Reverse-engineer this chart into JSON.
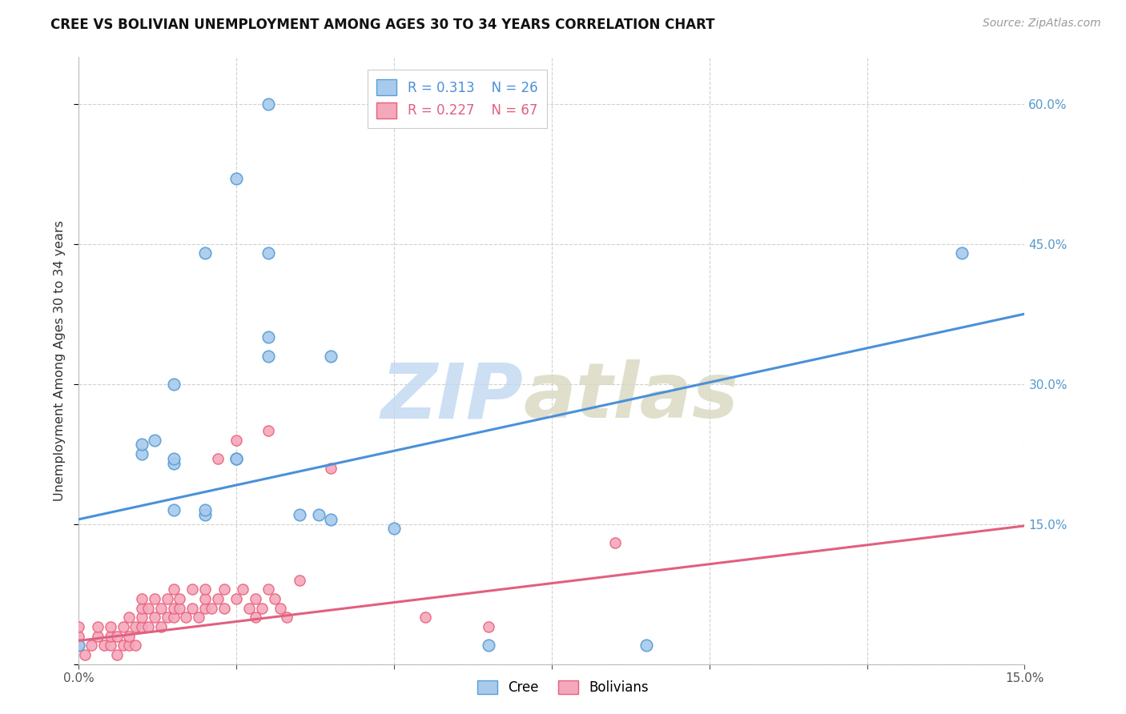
{
  "title": "CREE VS BOLIVIAN UNEMPLOYMENT AMONG AGES 30 TO 34 YEARS CORRELATION CHART",
  "source": "Source: ZipAtlas.com",
  "ylabel": "Unemployment Among Ages 30 to 34 years",
  "xlim": [
    0.0,
    0.15
  ],
  "ylim": [
    0.0,
    0.65
  ],
  "xticks": [
    0.0,
    0.025,
    0.05,
    0.075,
    0.1,
    0.125,
    0.15
  ],
  "yticks": [
    0.0,
    0.15,
    0.3,
    0.45,
    0.6
  ],
  "cree_color": "#A8CAED",
  "bolivian_color": "#F4A8BC",
  "cree_edge_color": "#5A9FD4",
  "bolivian_edge_color": "#E8607A",
  "cree_line_color": "#4A90D9",
  "bolivian_line_color": "#E06080",
  "R_cree": 0.313,
  "N_cree": 26,
  "R_bolivian": 0.227,
  "N_bolivian": 67,
  "cree_line_x0": 0.0,
  "cree_line_y0": 0.155,
  "cree_line_x1": 0.15,
  "cree_line_y1": 0.375,
  "bolivian_line_x0": 0.0,
  "bolivian_line_y0": 0.025,
  "bolivian_line_x1": 0.15,
  "bolivian_line_y1": 0.148,
  "cree_x": [
    0.0,
    0.01,
    0.01,
    0.012,
    0.015,
    0.015,
    0.015,
    0.02,
    0.02,
    0.025,
    0.025,
    0.03,
    0.03,
    0.035,
    0.038,
    0.04,
    0.05,
    0.065,
    0.09,
    0.14,
    0.02,
    0.025,
    0.03,
    0.03,
    0.04,
    0.015
  ],
  "cree_y": [
    0.02,
    0.225,
    0.235,
    0.24,
    0.215,
    0.22,
    0.165,
    0.16,
    0.165,
    0.22,
    0.22,
    0.35,
    0.33,
    0.16,
    0.16,
    0.155,
    0.145,
    0.02,
    0.02,
    0.44,
    0.44,
    0.52,
    0.6,
    0.44,
    0.33,
    0.3
  ],
  "bolivian_x": [
    0.0,
    0.0,
    0.0,
    0.001,
    0.002,
    0.003,
    0.003,
    0.004,
    0.005,
    0.005,
    0.005,
    0.006,
    0.006,
    0.007,
    0.007,
    0.008,
    0.008,
    0.008,
    0.009,
    0.009,
    0.01,
    0.01,
    0.01,
    0.01,
    0.011,
    0.011,
    0.012,
    0.012,
    0.013,
    0.013,
    0.014,
    0.014,
    0.015,
    0.015,
    0.015,
    0.016,
    0.016,
    0.017,
    0.018,
    0.018,
    0.019,
    0.02,
    0.02,
    0.02,
    0.021,
    0.022,
    0.022,
    0.023,
    0.023,
    0.025,
    0.025,
    0.025,
    0.026,
    0.027,
    0.028,
    0.028,
    0.029,
    0.03,
    0.03,
    0.031,
    0.032,
    0.033,
    0.035,
    0.04,
    0.055,
    0.065,
    0.085
  ],
  "bolivian_y": [
    0.02,
    0.03,
    0.04,
    0.01,
    0.02,
    0.03,
    0.04,
    0.02,
    0.02,
    0.03,
    0.04,
    0.01,
    0.03,
    0.02,
    0.04,
    0.02,
    0.03,
    0.05,
    0.02,
    0.04,
    0.04,
    0.05,
    0.06,
    0.07,
    0.04,
    0.06,
    0.05,
    0.07,
    0.04,
    0.06,
    0.05,
    0.07,
    0.05,
    0.06,
    0.08,
    0.06,
    0.07,
    0.05,
    0.06,
    0.08,
    0.05,
    0.06,
    0.07,
    0.08,
    0.06,
    0.22,
    0.07,
    0.06,
    0.08,
    0.22,
    0.24,
    0.07,
    0.08,
    0.06,
    0.05,
    0.07,
    0.06,
    0.25,
    0.08,
    0.07,
    0.06,
    0.05,
    0.09,
    0.21,
    0.05,
    0.04,
    0.13
  ]
}
